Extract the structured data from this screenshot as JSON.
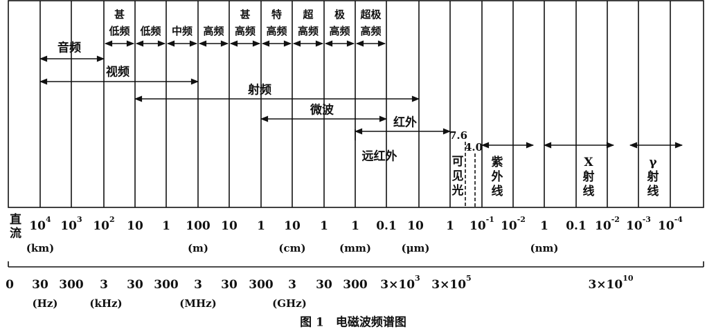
{
  "bands": [
    [
      "甚",
      "低频"
    ],
    [
      "低频"
    ],
    [
      "中频"
    ],
    [
      "高频"
    ],
    [
      "甚",
      "高频"
    ],
    [
      "特",
      "高频"
    ],
    [
      "超",
      "高频"
    ],
    [
      "极",
      "高频"
    ],
    [
      "超极",
      "高频"
    ]
  ],
  "spans": [
    "音频",
    "视频",
    "射频",
    "微波",
    "红外",
    "远红外",
    "紫外线",
    "X射线",
    "γ射线"
  ],
  "markers": [
    "7.6",
    "4.0"
  ],
  "visible_light": "可见光",
  "dc_label": "直流",
  "wavelengths": [
    {
      "base": "10",
      "sup": "4"
    },
    {
      "base": "10",
      "sup": "3"
    },
    {
      "base": "10",
      "sup": "2"
    },
    {
      "base": "10"
    },
    {
      "base": "1"
    },
    {
      "base": "100"
    },
    {
      "base": "10"
    },
    {
      "base": "1"
    },
    {
      "base": "10"
    },
    {
      "base": "1"
    },
    {
      "base": "1"
    },
    {
      "base": "0.1"
    },
    {
      "base": "10"
    },
    {
      "base": "1"
    },
    {
      "base": "10",
      "sup": "-1"
    },
    {
      "base": "10",
      "sup": "-2"
    },
    {
      "base": "1"
    },
    {
      "base": "0.1"
    },
    {
      "base": "10",
      "sup": "-2"
    },
    {
      "base": "10",
      "sup": "-3"
    },
    {
      "base": "10",
      "sup": "-4"
    }
  ],
  "wavelength_units": [
    "(km)",
    "(m)",
    "(cm)",
    "(mm)",
    "(μm)",
    "(nm)"
  ],
  "frequencies": [
    {
      "base": "0"
    },
    {
      "base": "30"
    },
    {
      "base": "300"
    },
    {
      "base": "3"
    },
    {
      "base": "30"
    },
    {
      "base": "300"
    },
    {
      "base": "3"
    },
    {
      "base": "30"
    },
    {
      "base": "300"
    },
    {
      "base": "3"
    },
    {
      "base": "30"
    },
    {
      "base": "300"
    },
    {
      "base": "3×10",
      "sup": "3"
    },
    {
      "base": "3×10",
      "sup": "5"
    },
    {
      "base": "3×10",
      "sup": "10"
    }
  ],
  "frequency_units": [
    "(Hz)",
    "(kHz)",
    "(MHz)",
    "(GHz)"
  ],
  "caption": "图 1　电磁波频谱图"
}
